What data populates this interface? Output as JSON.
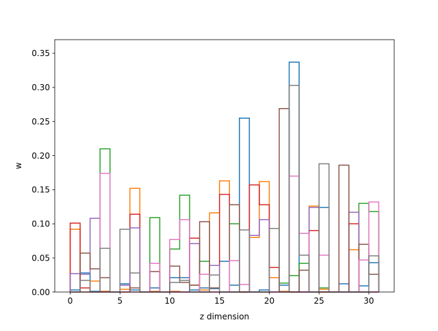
{
  "chart_data": {
    "type": "bar",
    "style": "step histogram (unfilled outlines), overlaid series, one bin per z dimension",
    "title": "",
    "xlabel": "z dimension",
    "ylabel": "w",
    "xlim": [
      -1.55,
      32.55
    ],
    "ylim": [
      0,
      0.37
    ],
    "xticks": [
      0,
      5,
      10,
      15,
      20,
      25,
      30
    ],
    "yticks": [
      0.0,
      0.05,
      0.1,
      0.15,
      0.2,
      0.25,
      0.3,
      0.35
    ],
    "grid": false,
    "legend": false,
    "x": [
      0,
      1,
      2,
      3,
      4,
      5,
      6,
      7,
      8,
      9,
      10,
      11,
      12,
      13,
      14,
      15,
      16,
      17,
      18,
      19,
      20,
      21,
      22,
      23,
      24,
      25,
      26,
      27,
      28,
      29,
      30
    ],
    "series": [
      {
        "color": "#1f77b4",
        "values": [
          0.003,
          0.028,
          0.001,
          0.001,
          0.0,
          0.012,
          0.003,
          0.0,
          0.006,
          0.0,
          0.021,
          0.021,
          0.003,
          0.006,
          0.005,
          0.045,
          0.01,
          0.255,
          0.0,
          0.003,
          0.0,
          0.01,
          0.337,
          0.0,
          0.0,
          0.124,
          0.0,
          0.012,
          0.0,
          0.009,
          0.043
        ]
      },
      {
        "color": "#ff7f0e",
        "values": [
          0.092,
          0.0,
          0.016,
          0.001,
          0.0,
          0.004,
          0.152,
          0.0,
          0.001,
          0.0,
          0.001,
          0.0,
          0.01,
          0.003,
          0.116,
          0.163,
          0.0,
          0.0,
          0.08,
          0.162,
          0.021,
          0.001,
          0.0,
          0.0,
          0.126,
          0.004,
          0.0,
          0.0,
          0.062,
          0.0,
          0.0
        ]
      },
      {
        "color": "#2ca02c",
        "values": [
          0.0,
          0.0,
          0.0,
          0.21,
          0.0,
          0.0,
          0.0,
          0.0,
          0.109,
          0.0,
          0.063,
          0.142,
          0.0,
          0.045,
          0.0,
          0.0,
          0.1,
          0.0,
          0.0,
          0.0,
          0.0,
          0.013,
          0.024,
          0.042,
          0.0,
          0.006,
          0.0,
          0.0,
          0.0,
          0.13,
          0.118
        ]
      },
      {
        "color": "#d62728",
        "values": [
          0.101,
          0.006,
          0.0,
          0.0,
          0.0,
          0.0,
          0.114,
          0.0,
          0.0,
          0.0,
          0.0,
          0.0,
          0.079,
          0.0,
          0.0,
          0.143,
          0.0,
          0.0,
          0.157,
          0.128,
          0.036,
          0.0,
          0.0,
          0.0,
          0.09,
          0.0,
          0.0,
          0.0,
          0.1,
          0.0,
          0.0
        ]
      },
      {
        "color": "#9467bd",
        "values": [
          0.027,
          0.026,
          0.108,
          0.0,
          0.0,
          0.01,
          0.094,
          0.0,
          0.0,
          0.0,
          0.0,
          0.0,
          0.071,
          0.0,
          0.039,
          0.0,
          0.0,
          0.0,
          0.083,
          0.106,
          0.0,
          0.0,
          0.0,
          0.0,
          0.124,
          0.0,
          0.0,
          0.0,
          0.117,
          0.0,
          0.0
        ]
      },
      {
        "color": "#8c564b",
        "values": [
          0.0,
          0.057,
          0.034,
          0.021,
          0.0,
          0.0,
          0.006,
          0.0,
          0.03,
          0.0,
          0.038,
          0.014,
          0.01,
          0.103,
          0.006,
          0.0,
          0.128,
          0.0,
          0.0,
          0.0,
          0.0,
          0.269,
          0.0,
          0.032,
          0.0,
          0.0,
          0.0,
          0.186,
          0.0,
          0.07,
          0.026
        ]
      },
      {
        "color": "#e377c2",
        "values": [
          0.0,
          0.0,
          0.0,
          0.174,
          0.0,
          0.0,
          0.0,
          0.0,
          0.042,
          0.0,
          0.077,
          0.106,
          0.0,
          0.026,
          0.0,
          0.0,
          0.046,
          0.011,
          0.0,
          0.0,
          0.0,
          0.0,
          0.17,
          0.086,
          0.0,
          0.054,
          0.0,
          0.0,
          0.0,
          0.047,
          0.132
        ]
      },
      {
        "color": "#7f7f7f",
        "values": [
          0.0,
          0.017,
          0.0,
          0.064,
          0.0,
          0.092,
          0.028,
          0.0,
          0.0,
          0.0,
          0.014,
          0.017,
          0.0,
          0.0,
          0.025,
          0.0,
          0.0,
          0.091,
          0.0,
          0.0,
          0.093,
          0.0,
          0.303,
          0.054,
          0.0,
          0.188,
          0.0,
          0.0,
          0.0,
          0.0,
          0.053
        ]
      }
    ]
  }
}
